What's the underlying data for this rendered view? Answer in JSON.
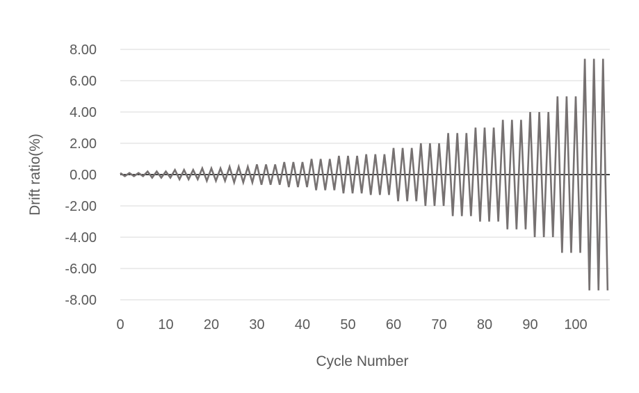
{
  "chart_data": {
    "type": "line",
    "title": "",
    "xlabel": "Cycle Number",
    "ylabel": "Drift ratio(%)",
    "xlim": [
      0,
      107
    ],
    "ylim": [
      -8,
      8
    ],
    "x_ticks": [
      0,
      10,
      20,
      30,
      40,
      50,
      60,
      70,
      80,
      90,
      100
    ],
    "x_tick_labels": [
      "0",
      "10",
      "20",
      "30",
      "40",
      "50",
      "60",
      "70",
      "80",
      "90",
      "100"
    ],
    "y_ticks": [
      8,
      6,
      4,
      2,
      0,
      -2,
      -4,
      -6,
      -8
    ],
    "y_tick_labels": [
      "8.00",
      "6.00",
      "4.00",
      "2.00",
      "0.00",
      "-2.00",
      "-4.00",
      "-6.00",
      "-8.00"
    ],
    "grid": true,
    "legend": "none",
    "colors": {
      "series": "#767171",
      "zero_line": "#000000",
      "grid": "#d9d9d9",
      "text": "#595959"
    },
    "series": [
      {
        "x": [
          0,
          1,
          2,
          3,
          4,
          5,
          6,
          7,
          8,
          9,
          10,
          11,
          12,
          13,
          14,
          15,
          16,
          17,
          18,
          19,
          20,
          21,
          22,
          23,
          24,
          25,
          26,
          27,
          28,
          29,
          30,
          31,
          32,
          33,
          34,
          35,
          36,
          37,
          38,
          39,
          40,
          41,
          42,
          43,
          44,
          45,
          46,
          47,
          48,
          49,
          50,
          51,
          52,
          53,
          54,
          55,
          56,
          57,
          58,
          59,
          60,
          61,
          62,
          63,
          64,
          65,
          66,
          67,
          68,
          69,
          70,
          71,
          72,
          73,
          74,
          75,
          76,
          77,
          78,
          79,
          80,
          81,
          82,
          83,
          84,
          85,
          86,
          87,
          88,
          89,
          90,
          91,
          92,
          93,
          94,
          95,
          96,
          97,
          98,
          99,
          100,
          101,
          102,
          103,
          104,
          105,
          106,
          107
        ],
        "y": [
          0.1,
          -0.1,
          0.1,
          -0.1,
          0.1,
          -0.1,
          0.2,
          -0.2,
          0.2,
          -0.2,
          0.2,
          -0.2,
          0.3,
          -0.3,
          0.3,
          -0.3,
          0.3,
          -0.3,
          0.4,
          -0.4,
          0.4,
          -0.4,
          0.4,
          -0.4,
          0.5,
          -0.5,
          0.5,
          -0.5,
          0.5,
          -0.5,
          0.65,
          -0.65,
          0.65,
          -0.65,
          0.65,
          -0.65,
          0.8,
          -0.8,
          0.8,
          -0.8,
          0.8,
          -0.8,
          1.0,
          -1.0,
          1.0,
          -1.0,
          1.0,
          -1.0,
          1.2,
          -1.2,
          1.2,
          -1.2,
          1.2,
          -1.2,
          1.3,
          -1.3,
          1.3,
          -1.3,
          1.3,
          -1.3,
          1.7,
          -1.7,
          1.7,
          -1.7,
          1.7,
          -1.7,
          2.0,
          -2.0,
          2.0,
          -2.0,
          2.0,
          -2.0,
          2.65,
          -2.65,
          2.65,
          -2.65,
          2.65,
          -2.65,
          3.0,
          -3.0,
          3.0,
          -3.0,
          3.0,
          -3.0,
          3.5,
          -3.5,
          3.5,
          -3.5,
          3.5,
          -3.5,
          4.0,
          -4.0,
          4.0,
          -4.0,
          4.0,
          -4.0,
          5.0,
          -5.0,
          5.0,
          -5.0,
          5.0,
          -5.0,
          7.4,
          -7.4,
          7.4,
          -7.4,
          7.4,
          -7.4
        ]
      }
    ]
  }
}
